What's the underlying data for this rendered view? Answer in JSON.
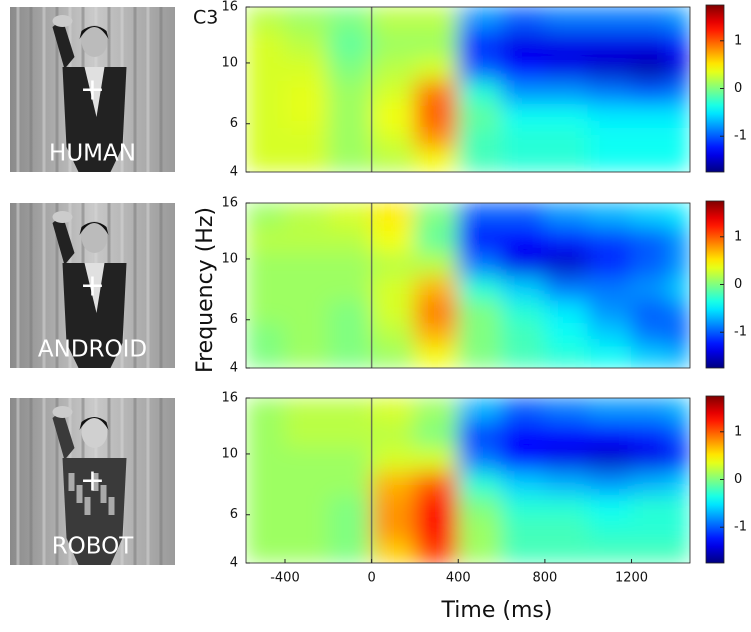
{
  "chart_data": [
    {
      "type": "heatmap",
      "title": "C3",
      "image_label": "HUMAN",
      "fixation_mark": "+",
      "x": [
        -500,
        -300,
        -100,
        100,
        300,
        500,
        700,
        900,
        1100,
        1300,
        1450
      ],
      "y": [
        4.4,
        5.3,
        6.4,
        7.8,
        9.6,
        11.8,
        14.5
      ],
      "values": [
        [
          0.3,
          0.3,
          0.1,
          0.2,
          0.4,
          -0.2,
          -0.3,
          -0.3,
          -0.4,
          -0.4,
          -0.4
        ],
        [
          0.3,
          0.3,
          0.1,
          0.3,
          0.8,
          -0.2,
          -0.3,
          -0.3,
          -0.4,
          -0.4,
          -0.4
        ],
        [
          0.3,
          0.35,
          0.1,
          0.4,
          1.0,
          -0.1,
          -0.4,
          -0.4,
          -0.5,
          -0.5,
          -0.5
        ],
        [
          0.3,
          0.35,
          0.1,
          0.3,
          0.9,
          -0.3,
          -0.8,
          -0.8,
          -0.9,
          -1.0,
          -0.9
        ],
        [
          0.3,
          0.3,
          0.0,
          0.2,
          0.3,
          -1.0,
          -1.3,
          -1.4,
          -1.5,
          -1.6,
          -1.4
        ],
        [
          0.3,
          0.2,
          -0.1,
          0.1,
          0.1,
          -1.2,
          -1.4,
          -1.4,
          -1.4,
          -1.4,
          -1.2
        ],
        [
          0.2,
          0.1,
          0.0,
          0.2,
          0.2,
          -0.8,
          -1.0,
          -0.9,
          -0.9,
          -0.9,
          -0.8
        ]
      ],
      "xlim": [
        -580,
        1470
      ],
      "ylim": [
        4,
        16
      ],
      "log_y": true,
      "yticks": [
        4,
        6,
        10,
        16
      ],
      "event_line": 0,
      "clim": [
        -1.75,
        1.75
      ],
      "cticks": [
        -1,
        0,
        1
      ],
      "colormap": "jet"
    },
    {
      "type": "heatmap",
      "image_label": "ANDROID",
      "fixation_mark": "+",
      "ylabel": "Frequency (Hz)",
      "x": [
        -500,
        -300,
        -100,
        100,
        300,
        500,
        700,
        900,
        1100,
        1300,
        1450
      ],
      "y": [
        4.4,
        5.3,
        6.4,
        7.8,
        9.6,
        11.8,
        14.5
      ],
      "values": [
        [
          0.0,
          0.1,
          0.0,
          0.1,
          0.4,
          0.0,
          -0.2,
          -0.3,
          -0.4,
          -0.6,
          -0.7
        ],
        [
          0.0,
          0.1,
          0.0,
          0.2,
          0.7,
          0.0,
          -0.2,
          -0.4,
          -0.6,
          -0.9,
          -1.0
        ],
        [
          0.1,
          0.1,
          0.0,
          0.3,
          0.9,
          0.0,
          -0.3,
          -0.5,
          -0.8,
          -1.0,
          -0.9
        ],
        [
          0.1,
          0.1,
          0.1,
          0.3,
          0.7,
          -0.3,
          -0.6,
          -0.9,
          -0.9,
          -0.8,
          -0.6
        ],
        [
          0.1,
          0.1,
          0.1,
          0.2,
          0.2,
          -0.9,
          -1.4,
          -1.5,
          -1.2,
          -1.0,
          -0.8
        ],
        [
          0.2,
          0.2,
          0.2,
          0.4,
          -0.1,
          -1.3,
          -1.3,
          -1.2,
          -1.1,
          -1.0,
          -0.8
        ],
        [
          0.1,
          0.2,
          0.3,
          0.5,
          0.0,
          -1.0,
          -1.0,
          -0.8,
          -0.7,
          -0.6,
          -0.5
        ]
      ],
      "xlim": [
        -580,
        1470
      ],
      "ylim": [
        4,
        16
      ],
      "log_y": true,
      "yticks": [
        4,
        6,
        10,
        16
      ],
      "event_line": 0,
      "clim": [
        -1.75,
        1.75
      ],
      "cticks": [
        -1,
        0,
        1
      ],
      "colormap": "jet"
    },
    {
      "type": "heatmap",
      "image_label": "ROBOT",
      "fixation_mark": "+",
      "xlabel": "Time (ms)",
      "x": [
        -500,
        -300,
        -100,
        100,
        300,
        500,
        700,
        900,
        1100,
        1300,
        1450
      ],
      "y": [
        4.4,
        5.3,
        6.4,
        7.8,
        9.6,
        11.8,
        14.5
      ],
      "values": [
        [
          0.1,
          0.1,
          0.0,
          0.6,
          1.1,
          0.1,
          -0.2,
          -0.2,
          -0.2,
          -0.2,
          -0.2
        ],
        [
          0.1,
          0.1,
          0.0,
          0.8,
          1.3,
          0.1,
          -0.2,
          -0.2,
          -0.3,
          -0.3,
          -0.3
        ],
        [
          0.1,
          0.1,
          0.0,
          0.8,
          1.3,
          0.0,
          -0.3,
          -0.3,
          -0.4,
          -0.3,
          -0.3
        ],
        [
          0.1,
          0.1,
          0.1,
          0.7,
          1.0,
          -0.3,
          -0.6,
          -0.7,
          -0.8,
          -0.7,
          -0.6
        ],
        [
          0.1,
          0.1,
          0.1,
          0.3,
          0.3,
          -0.9,
          -1.3,
          -1.4,
          -1.5,
          -1.4,
          -1.2
        ],
        [
          0.1,
          0.2,
          0.2,
          0.2,
          0.0,
          -1.1,
          -1.3,
          -1.3,
          -1.3,
          -1.2,
          -1.0
        ],
        [
          0.1,
          0.2,
          0.2,
          0.3,
          0.1,
          -0.7,
          -1.0,
          -0.9,
          -0.8,
          -0.8,
          -0.7
        ]
      ],
      "xlim": [
        -580,
        1470
      ],
      "ylim": [
        4,
        16
      ],
      "log_y": true,
      "yticks": [
        4,
        6,
        10,
        16
      ],
      "xticks": [
        -400,
        0,
        400,
        800,
        1200
      ],
      "event_line": 0,
      "clim": [
        -1.75,
        1.75
      ],
      "cticks": [
        -1,
        0,
        1
      ],
      "colormap": "jet"
    }
  ]
}
